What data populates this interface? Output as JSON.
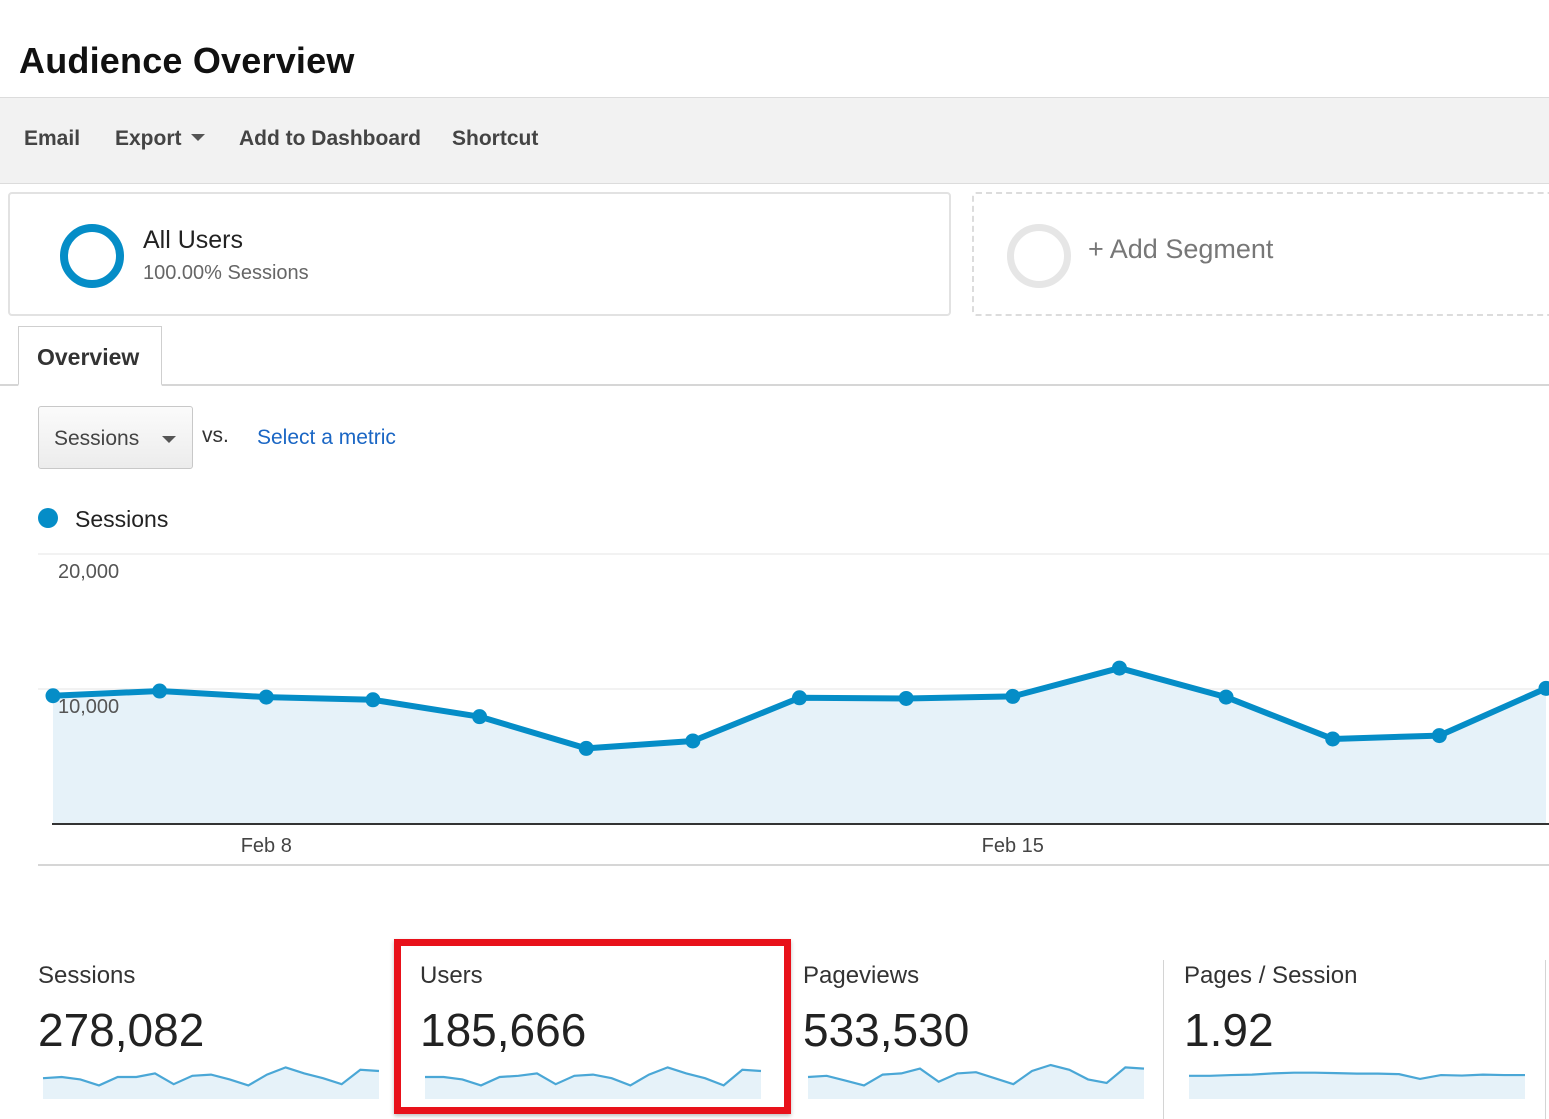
{
  "header": {
    "title": "Audience Overview"
  },
  "toolbar": {
    "email": "Email",
    "export": "Export",
    "add_to_dashboard": "Add to Dashboard",
    "shortcut": "Shortcut"
  },
  "segments": {
    "active": {
      "title": "All Users",
      "subtitle": "100.00% Sessions",
      "color": "#058dc7"
    },
    "add_label": "+ Add Segment"
  },
  "tabs": [
    {
      "label": "Overview",
      "selected": true
    }
  ],
  "metric_picker": {
    "selected": "Sessions",
    "vs_label": "vs.",
    "select_metric_label": "Select a metric"
  },
  "legend": {
    "label": "Sessions",
    "color": "#058dc7"
  },
  "chart_data": {
    "type": "area",
    "series": [
      {
        "name": "Sessions",
        "values": [
          9500,
          9850,
          9400,
          9200,
          7950,
          5600,
          6150,
          9350,
          9300,
          9450,
          11550,
          9400,
          6300,
          6550,
          10050
        ]
      }
    ],
    "x_tick_labels": [
      {
        "index": 2,
        "label": "Feb 8"
      },
      {
        "index": 9,
        "label": "Feb 15"
      }
    ],
    "y_ticks": [
      {
        "value": 20000,
        "label": "20,000"
      },
      {
        "value": 10000,
        "label": "10,000"
      }
    ],
    "ylim": [
      0,
      20000
    ],
    "grid": true,
    "line_color": "#058dc7",
    "fill_color": "#e6f2f9"
  },
  "scorecards": [
    {
      "label": "Sessions",
      "value": "278,082",
      "sparkline": [
        0.45,
        0.5,
        0.4,
        0.15,
        0.5,
        0.5,
        0.65,
        0.2,
        0.55,
        0.6,
        0.4,
        0.15,
        0.6,
        0.9,
        0.65,
        0.45,
        0.2,
        0.8,
        0.75
      ]
    },
    {
      "label": "Users",
      "value": "185,666",
      "sparkline": [
        0.5,
        0.5,
        0.4,
        0.15,
        0.5,
        0.55,
        0.65,
        0.2,
        0.55,
        0.6,
        0.45,
        0.15,
        0.6,
        0.9,
        0.65,
        0.45,
        0.15,
        0.8,
        0.75
      ]
    },
    {
      "label": "Pageviews",
      "value": "533,530",
      "sparkline": [
        0.5,
        0.55,
        0.35,
        0.15,
        0.6,
        0.65,
        0.85,
        0.3,
        0.65,
        0.7,
        0.45,
        0.2,
        0.75,
        1.0,
        0.8,
        0.4,
        0.25,
        0.9,
        0.85
      ]
    },
    {
      "label": "Pages / Session",
      "value": "1.92",
      "sparkline": [
        0.55,
        0.55,
        0.58,
        0.6,
        0.65,
        0.68,
        0.68,
        0.66,
        0.64,
        0.64,
        0.62,
        0.42,
        0.58,
        0.56,
        0.6,
        0.58,
        0.58
      ]
    }
  ],
  "highlight": {
    "target": "Users",
    "color": "#e8111a"
  }
}
